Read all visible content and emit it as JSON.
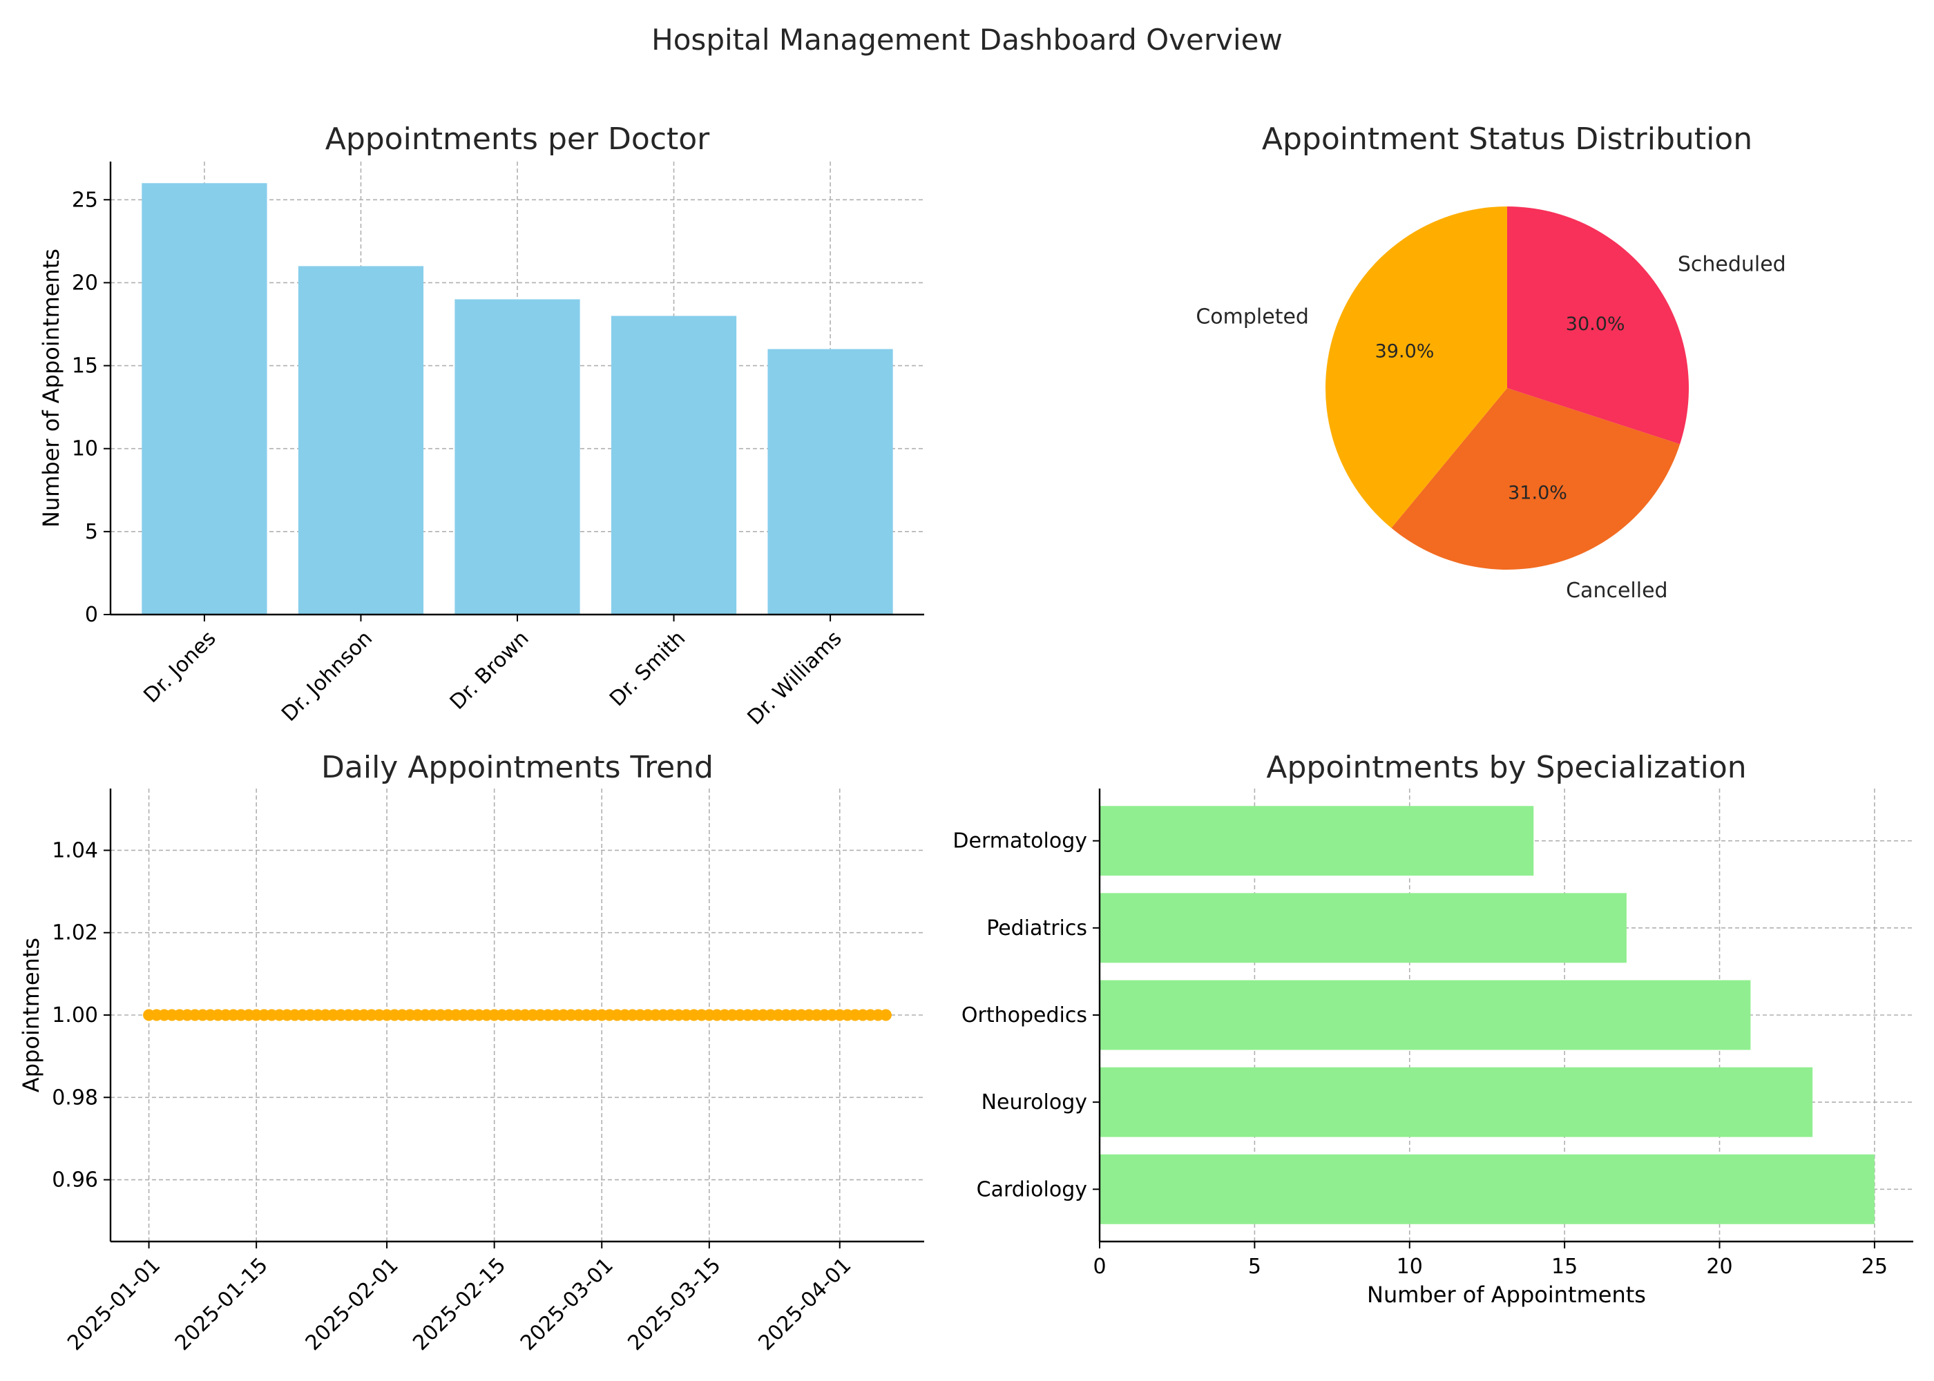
{
  "title": "Hospital Management Dashboard Overview",
  "chart_data": [
    {
      "type": "bar",
      "title": "Appointments per Doctor",
      "xlabel": "",
      "ylabel": "Number of Appointments",
      "categories": [
        "Dr. Jones",
        "Dr. Johnson",
        "Dr. Brown",
        "Dr. Smith",
        "Dr. Williams"
      ],
      "values": [
        26,
        21,
        19,
        18,
        16
      ],
      "ylim": [
        0,
        27.3
      ],
      "yticks": [
        0,
        5,
        10,
        15,
        20,
        25
      ],
      "color": "#87ceeb",
      "grid": true
    },
    {
      "type": "pie",
      "title": "Appointment Status Distribution",
      "labels": [
        "Scheduled",
        "Cancelled",
        "Completed"
      ],
      "values": [
        30.0,
        31.0,
        39.0
      ],
      "percent_labels": [
        "30.0%",
        "31.0%",
        "39.0%"
      ],
      "colors": [
        "#f73159",
        "#f26b21",
        "#ffae00"
      ]
    },
    {
      "type": "line",
      "title": "Daily Appointments Trend",
      "xlabel": "",
      "ylabel": "Appointments",
      "x_start": "2025-01-01",
      "x_end": "2025-04-07",
      "y_constant": 1.0,
      "xlim": [
        "2024-12-27",
        "2025-04-12"
      ],
      "ylim": [
        0.945,
        1.055
      ],
      "xticks": [
        "2025-01-01",
        "2025-01-15",
        "2025-02-01",
        "2025-02-15",
        "2025-03-01",
        "2025-03-15",
        "2025-04-01"
      ],
      "yticks": [
        "0.96",
        "0.98",
        "1.00",
        "1.02",
        "1.04"
      ],
      "color": "#ffae00",
      "marker": "circle",
      "grid": true
    },
    {
      "type": "bar",
      "orientation": "horizontal",
      "title": "Appointments by Specialization",
      "xlabel": "Number of Appointments",
      "ylabel": "",
      "categories": [
        "Cardiology",
        "Neurology",
        "Orthopedics",
        "Pediatrics",
        "Dermatology"
      ],
      "values": [
        25,
        23,
        21,
        17,
        14
      ],
      "xlim": [
        0,
        26.25
      ],
      "xticks": [
        0,
        5,
        10,
        15,
        20,
        25
      ],
      "color": "#90ee90",
      "grid": true
    }
  ]
}
